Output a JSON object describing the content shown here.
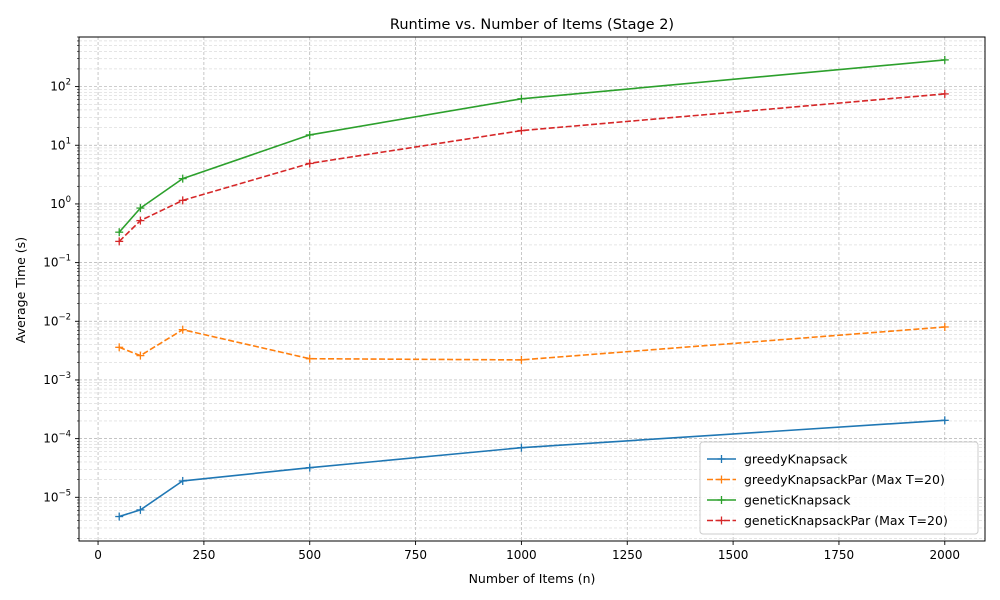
{
  "chart_data": {
    "type": "line",
    "title": "Runtime vs. Number of Items (Stage 2)",
    "xlabel": "Number of Items (n)",
    "ylabel": "Average Time (s)",
    "x": [
      50,
      100,
      200,
      500,
      1000,
      2000
    ],
    "xlim": [
      -45,
      2095
    ],
    "ylim": [
      1.8e-06,
      700
    ],
    "yscale": "log",
    "grid": true,
    "legend_position": "lower-right",
    "x_ticks": [
      "0",
      "250",
      "500",
      "750",
      "1000",
      "1250",
      "1500",
      "1750",
      "2000"
    ],
    "y_ticks": [
      {
        "base": "10",
        "exp": "−5",
        "value": 1e-05
      },
      {
        "base": "10",
        "exp": "−4",
        "value": 0.0001
      },
      {
        "base": "10",
        "exp": "−3",
        "value": 0.001
      },
      {
        "base": "10",
        "exp": "−2",
        "value": 0.01
      },
      {
        "base": "10",
        "exp": "−1",
        "value": 0.1
      },
      {
        "base": "10",
        "exp": "0",
        "value": 1
      },
      {
        "base": "10",
        "exp": "1",
        "value": 10
      },
      {
        "base": "10",
        "exp": "2",
        "value": 100
      }
    ],
    "series": [
      {
        "name": "greedyKnapsack",
        "color": "#1f77b4",
        "dashed": false,
        "values": [
          4.7e-06,
          6.1e-06,
          1.9e-05,
          3.2e-05,
          7e-05,
          0.000205
        ]
      },
      {
        "name": "greedyKnapsackPar (Max T=20)",
        "color": "#ff7f0e",
        "dashed": true,
        "values": [
          0.0036,
          0.0026,
          0.0072,
          0.0023,
          0.0022,
          0.008
        ]
      },
      {
        "name": "geneticKnapsack",
        "color": "#2ca02c",
        "dashed": false,
        "values": [
          0.33,
          0.85,
          2.7,
          15.0,
          62.0,
          285.0
        ]
      },
      {
        "name": "geneticKnapsackPar (Max T=20)",
        "color": "#d62728",
        "dashed": true,
        "values": [
          0.23,
          0.52,
          1.15,
          4.9,
          17.8,
          75.0
        ]
      }
    ]
  }
}
